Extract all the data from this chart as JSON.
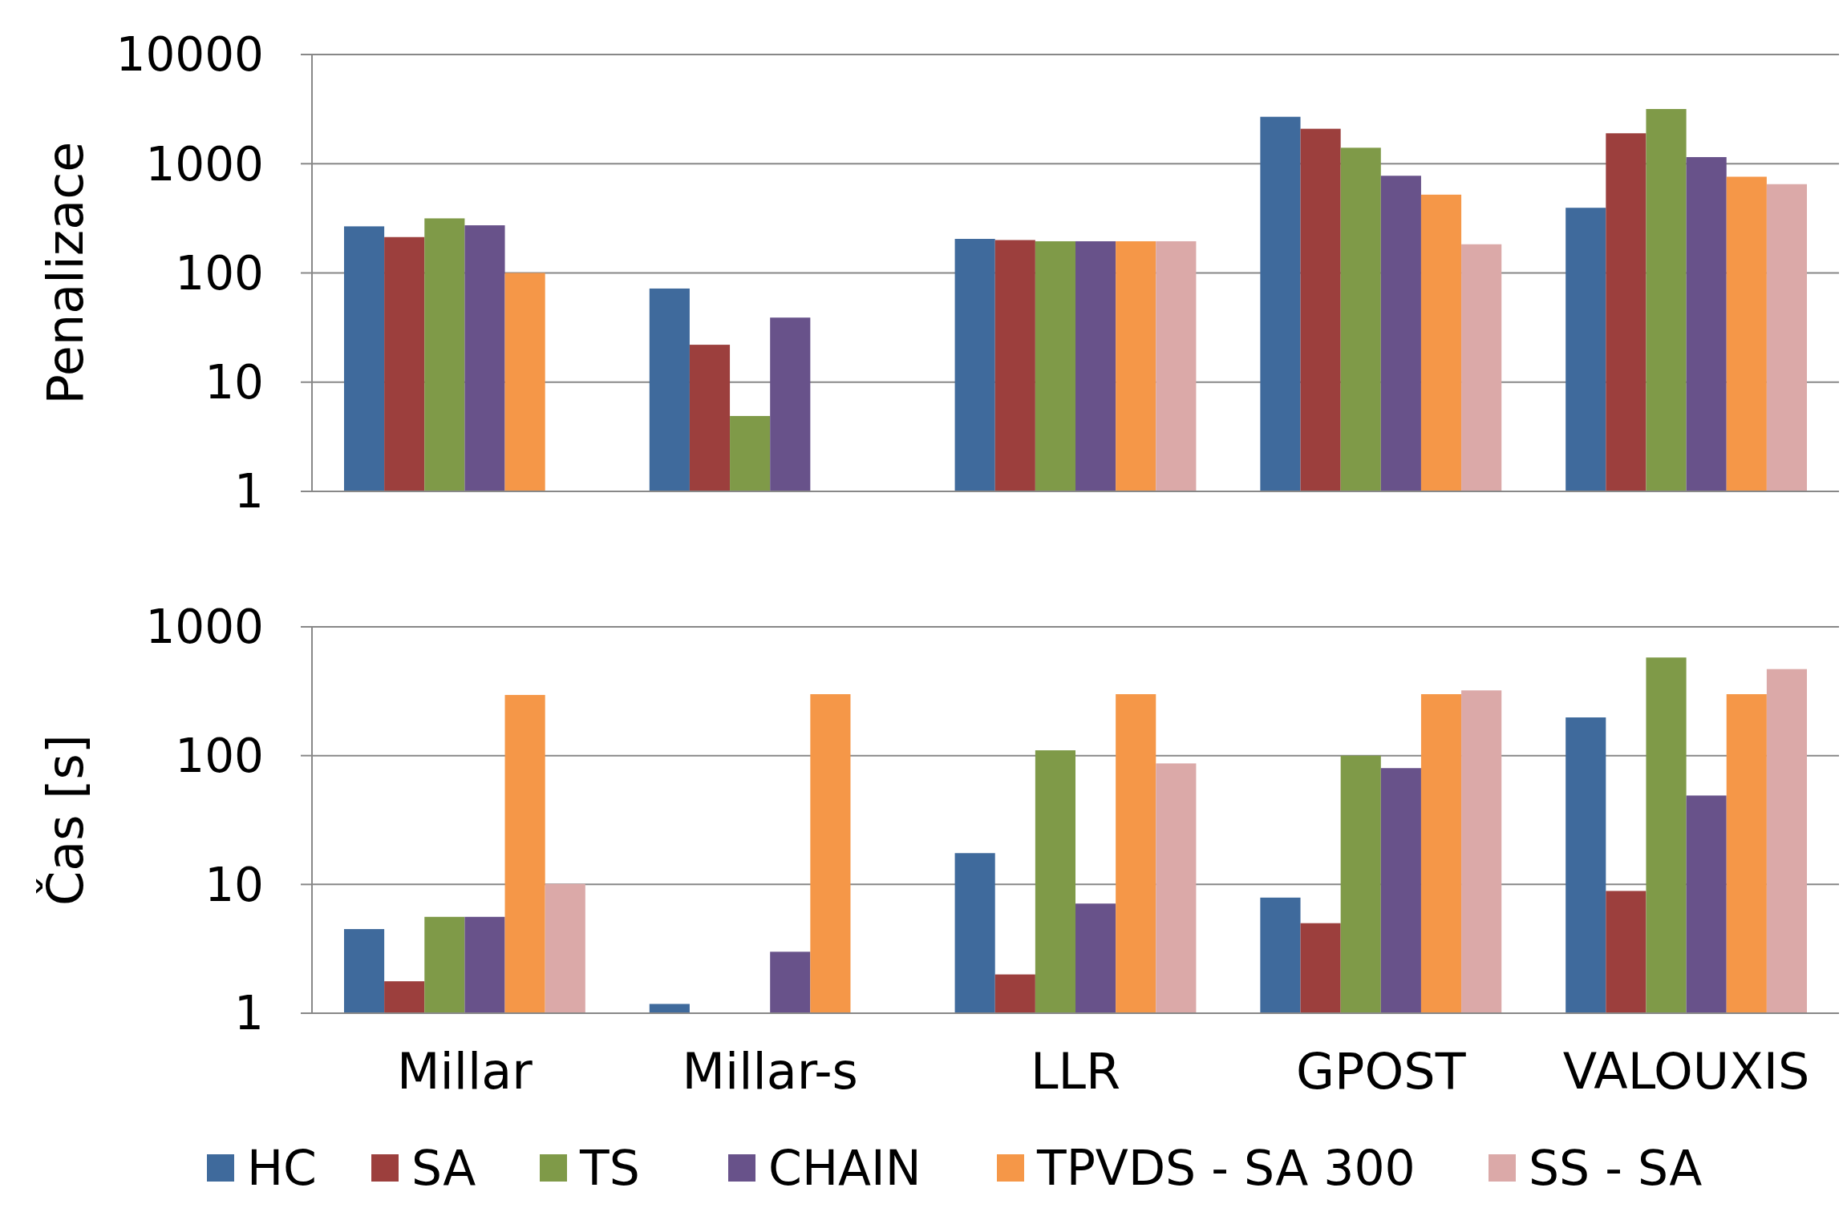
{
  "chart_data": [
    {
      "type": "bar",
      "ylabel": "Penalizace",
      "log": true,
      "grid": "y",
      "ylim": [
        1,
        10000
      ],
      "yticks": [
        1,
        10,
        100,
        1000,
        10000
      ],
      "categories": [
        null,
        null,
        null,
        null,
        null
      ],
      "series": [
        {
          "color": "#3f6a9c",
          "values": [
            267,
            72,
            205,
            2690,
            395
          ]
        },
        {
          "color": "#9c3f3d",
          "values": [
            213,
            22,
            200,
            2090,
            1900
          ]
        },
        {
          "color": "#7f9a48",
          "values": [
            316,
            4.9,
            195,
            1400,
            3170
          ]
        },
        {
          "color": "#68528a",
          "values": [
            273,
            39,
            195,
            776,
            1150
          ]
        },
        {
          "color": "#f59748",
          "values": [
            100,
            null,
            195,
            521,
            760
          ]
        },
        {
          "color": "#dba9a8",
          "values": [
            null,
            null,
            195,
            183,
            650
          ]
        }
      ]
    },
    {
      "type": "bar",
      "ylabel": "Čas [s]",
      "log": true,
      "grid": "y",
      "legend": "bottom",
      "ylim": [
        1,
        1000
      ],
      "yticks": [
        1,
        10,
        100,
        1000
      ],
      "categories": [
        "Millar",
        "Millar-s",
        "LLR",
        "GPOST",
        "VALOUXIS"
      ],
      "series": [
        {
          "name": "HC",
          "color": "#3f6a9c",
          "values": [
            4.5,
            1.18,
            17.5,
            7.9,
            198
          ]
        },
        {
          "name": "SA",
          "color": "#9c3f3d",
          "values": [
            1.77,
            1,
            2,
            5,
            8.9
          ]
        },
        {
          "name": "TS",
          "color": "#7f9a48",
          "values": [
            5.6,
            1,
            110,
            100,
            578
          ]
        },
        {
          "name": "CHAIN",
          "color": "#68528a",
          "values": [
            5.6,
            3,
            7.1,
            80,
            49
          ]
        },
        {
          "name": "TPVDS - SA 300",
          "color": "#f59748",
          "values": [
            296,
            300,
            300,
            300,
            300
          ]
        },
        {
          "name": "SS - SA",
          "color": "#dba9a8",
          "values": [
            10.1,
            1,
            87,
            321,
            470
          ]
        }
      ]
    }
  ]
}
